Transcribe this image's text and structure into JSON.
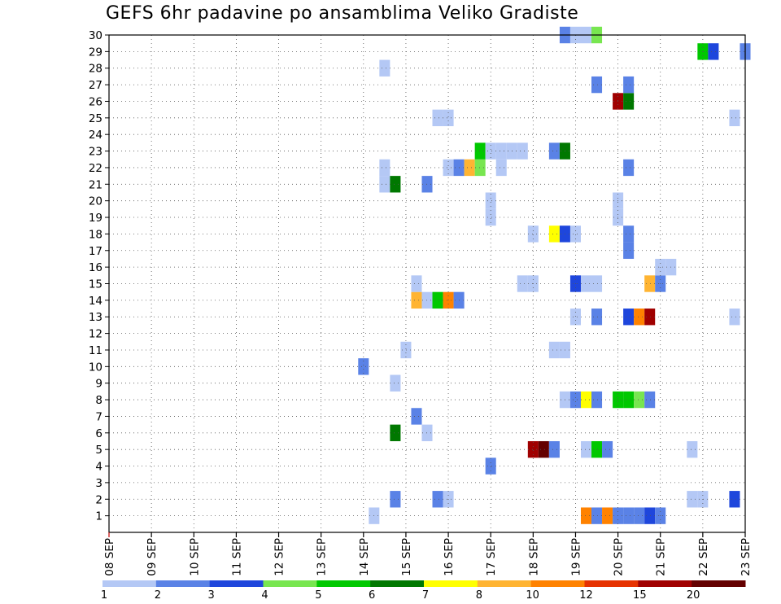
{
  "chart_data": {
    "type": "heatmap",
    "title": "GEFS 6hr padavine po ansamblima Veliko Gradiste",
    "xlabel": "",
    "ylabel": "",
    "x_ticks": [
      "08 SEP",
      "09 SEP",
      "10 SEP",
      "11 SEP",
      "12 SEP",
      "13 SEP",
      "14 SEP",
      "15 SEP",
      "16 SEP",
      "17 SEP",
      "18 SEP",
      "19 SEP",
      "20 SEP",
      "21 SEP",
      "22 SEP",
      "23 SEP"
    ],
    "xlim": [
      0,
      60
    ],
    "x_unit": "6-hour steps from 08 SEP 00Z",
    "ylim": [
      0,
      30
    ],
    "y_ticks": [
      1,
      2,
      3,
      4,
      5,
      6,
      7,
      8,
      9,
      10,
      11,
      12,
      13,
      14,
      15,
      16,
      17,
      18,
      19,
      20,
      21,
      22,
      23,
      24,
      25,
      26,
      27,
      28,
      29,
      30
    ],
    "grid": true,
    "legend": {
      "placement": "bottom",
      "labels": [
        "1",
        "2",
        "3",
        "4",
        "5",
        "6",
        "7",
        "8",
        "10",
        "12",
        "15",
        "20"
      ],
      "colors": [
        "#b4c8f5",
        "#5a82e6",
        "#1e46dc",
        "#78e650",
        "#00c800",
        "#007800",
        "#ffff00",
        "#ffb432",
        "#ff8200",
        "#e63200",
        "#a00000",
        "#640000"
      ]
    },
    "cells": [
      {
        "member": 1,
        "step": 25,
        "value": 1
      },
      {
        "member": 1,
        "step": 45,
        "value": 10
      },
      {
        "member": 1,
        "step": 46,
        "value": 2
      },
      {
        "member": 1,
        "step": 47,
        "value": 10
      },
      {
        "member": 1,
        "step": 48,
        "value": 2
      },
      {
        "member": 1,
        "step": 49,
        "value": 2
      },
      {
        "member": 1,
        "step": 50,
        "value": 2
      },
      {
        "member": 1,
        "step": 51,
        "value": 3
      },
      {
        "member": 1,
        "step": 52,
        "value": 2
      },
      {
        "member": 2,
        "step": 27,
        "value": 2
      },
      {
        "member": 2,
        "step": 31,
        "value": 2
      },
      {
        "member": 2,
        "step": 32,
        "value": 1
      },
      {
        "member": 2,
        "step": 55,
        "value": 1
      },
      {
        "member": 2,
        "step": 56,
        "value": 1
      },
      {
        "member": 2,
        "step": 59,
        "value": 3
      },
      {
        "member": 4,
        "step": 36,
        "value": 2
      },
      {
        "member": 5,
        "step": 40,
        "value": 15
      },
      {
        "member": 5,
        "step": 41,
        "value": 20
      },
      {
        "member": 5,
        "step": 42,
        "value": 2
      },
      {
        "member": 5,
        "step": 45,
        "value": 1
      },
      {
        "member": 5,
        "step": 46,
        "value": 5
      },
      {
        "member": 5,
        "step": 47,
        "value": 2
      },
      {
        "member": 5,
        "step": 55,
        "value": 1
      },
      {
        "member": 6,
        "step": 27,
        "value": 6
      },
      {
        "member": 6,
        "step": 30,
        "value": 1
      },
      {
        "member": 7,
        "step": 29,
        "value": 2
      },
      {
        "member": 8,
        "step": 43,
        "value": 1
      },
      {
        "member": 8,
        "step": 44,
        "value": 2
      },
      {
        "member": 8,
        "step": 45,
        "value": 7
      },
      {
        "member": 8,
        "step": 46,
        "value": 2
      },
      {
        "member": 8,
        "step": 48,
        "value": 5
      },
      {
        "member": 8,
        "step": 49,
        "value": 5
      },
      {
        "member": 8,
        "step": 50,
        "value": 4
      },
      {
        "member": 8,
        "step": 51,
        "value": 2
      },
      {
        "member": 9,
        "step": 27,
        "value": 1
      },
      {
        "member": 10,
        "step": 24,
        "value": 2
      },
      {
        "member": 11,
        "step": 28,
        "value": 1
      },
      {
        "member": 11,
        "step": 42,
        "value": 1
      },
      {
        "member": 11,
        "step": 43,
        "value": 1
      },
      {
        "member": 13,
        "step": 44,
        "value": 1
      },
      {
        "member": 13,
        "step": 46,
        "value": 2
      },
      {
        "member": 13,
        "step": 49,
        "value": 3
      },
      {
        "member": 13,
        "step": 50,
        "value": 10
      },
      {
        "member": 13,
        "step": 51,
        "value": 15
      },
      {
        "member": 13,
        "step": 59,
        "value": 1
      },
      {
        "member": 14,
        "step": 29,
        "value": 8
      },
      {
        "member": 14,
        "step": 30,
        "value": 1
      },
      {
        "member": 14,
        "step": 31,
        "value": 5
      },
      {
        "member": 14,
        "step": 32,
        "value": 10
      },
      {
        "member": 14,
        "step": 33,
        "value": 2
      },
      {
        "member": 15,
        "step": 29,
        "value": 1
      },
      {
        "member": 15,
        "step": 39,
        "value": 1
      },
      {
        "member": 15,
        "step": 40,
        "value": 1
      },
      {
        "member": 15,
        "step": 44,
        "value": 3
      },
      {
        "member": 15,
        "step": 45,
        "value": 1
      },
      {
        "member": 15,
        "step": 46,
        "value": 1
      },
      {
        "member": 15,
        "step": 51,
        "value": 8
      },
      {
        "member": 15,
        "step": 52,
        "value": 2
      },
      {
        "member": 16,
        "step": 52,
        "value": 1
      },
      {
        "member": 16,
        "step": 53,
        "value": 1
      },
      {
        "member": 17,
        "step": 49,
        "value": 2
      },
      {
        "member": 18,
        "step": 40,
        "value": 1
      },
      {
        "member": 18,
        "step": 42,
        "value": 7
      },
      {
        "member": 18,
        "step": 43,
        "value": 3
      },
      {
        "member": 18,
        "step": 44,
        "value": 1
      },
      {
        "member": 18,
        "step": 49,
        "value": 2
      },
      {
        "member": 19,
        "step": 36,
        "value": 1
      },
      {
        "member": 19,
        "step": 48,
        "value": 1
      },
      {
        "member": 20,
        "step": 36,
        "value": 1
      },
      {
        "member": 20,
        "step": 48,
        "value": 1
      },
      {
        "member": 21,
        "step": 26,
        "value": 1
      },
      {
        "member": 21,
        "step": 27,
        "value": 6
      },
      {
        "member": 21,
        "step": 30,
        "value": 2
      },
      {
        "member": 22,
        "step": 26,
        "value": 1
      },
      {
        "member": 22,
        "step": 32,
        "value": 1
      },
      {
        "member": 22,
        "step": 33,
        "value": 2
      },
      {
        "member": 22,
        "step": 34,
        "value": 8
      },
      {
        "member": 22,
        "step": 35,
        "value": 4
      },
      {
        "member": 22,
        "step": 37,
        "value": 1
      },
      {
        "member": 22,
        "step": 49,
        "value": 2
      },
      {
        "member": 23,
        "step": 35,
        "value": 5
      },
      {
        "member": 23,
        "step": 36,
        "value": 1
      },
      {
        "member": 23,
        "step": 37,
        "value": 1
      },
      {
        "member": 23,
        "step": 38,
        "value": 1
      },
      {
        "member": 23,
        "step": 39,
        "value": 1
      },
      {
        "member": 23,
        "step": 42,
        "value": 2
      },
      {
        "member": 23,
        "step": 43,
        "value": 6
      },
      {
        "member": 25,
        "step": 31,
        "value": 1
      },
      {
        "member": 25,
        "step": 32,
        "value": 1
      },
      {
        "member": 25,
        "step": 59,
        "value": 1
      },
      {
        "member": 26,
        "step": 48,
        "value": 15
      },
      {
        "member": 26,
        "step": 49,
        "value": 6
      },
      {
        "member": 27,
        "step": 46,
        "value": 2
      },
      {
        "member": 27,
        "step": 49,
        "value": 2
      },
      {
        "member": 28,
        "step": 26,
        "value": 1
      },
      {
        "member": 29,
        "step": 56,
        "value": 5
      },
      {
        "member": 29,
        "step": 57,
        "value": 3
      },
      {
        "member": 29,
        "step": 60,
        "value": 2
      },
      {
        "member": 30,
        "step": 43,
        "value": 2
      },
      {
        "member": 30,
        "step": 44,
        "value": 1
      },
      {
        "member": 30,
        "step": 45,
        "value": 1
      },
      {
        "member": 30,
        "step": 46,
        "value": 4
      }
    ]
  }
}
